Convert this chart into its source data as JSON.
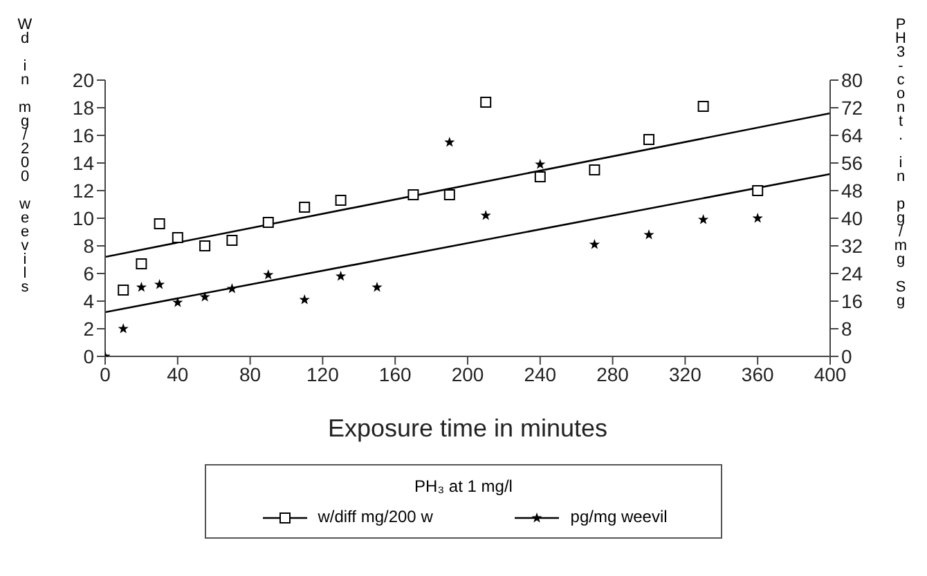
{
  "chart_data": {
    "type": "scatter",
    "xlabel": "Exposure time in minutes",
    "ylabel": "Wd in mg/200 weevils",
    "y2label": "PH3-cont. in pg/mg Sg",
    "legend_title": "PH₃ at 1 mg/l",
    "legend": "bottom",
    "xlim": [
      0,
      400
    ],
    "xticks": [
      0,
      40,
      80,
      120,
      160,
      200,
      240,
      280,
      320,
      360,
      400
    ],
    "ylim": [
      0,
      20
    ],
    "yticks": [
      0,
      2,
      4,
      6,
      8,
      10,
      12,
      14,
      16,
      18,
      20
    ],
    "y2lim": [
      0,
      80
    ],
    "y2ticks": [
      0,
      8,
      16,
      24,
      32,
      40,
      48,
      56,
      64,
      72,
      80
    ],
    "series": [
      {
        "name": "w/diff mg/200 w",
        "marker": "square",
        "color": "#000000",
        "x": [
          10,
          20,
          30,
          40,
          55,
          70,
          90,
          110,
          130,
          170,
          190,
          210,
          240,
          270,
          300,
          330,
          360
        ],
        "values": [
          4.8,
          6.7,
          9.6,
          8.6,
          8.0,
          8.4,
          9.7,
          10.8,
          11.3,
          11.7,
          11.7,
          18.4,
          13.0,
          13.5,
          15.7,
          18.1,
          12.0
        ]
      },
      {
        "name": "pg/mg weevil",
        "marker": "star",
        "axis": "y2",
        "color": "#000000",
        "x": [
          0,
          10,
          20,
          30,
          40,
          55,
          70,
          90,
          110,
          130,
          150,
          190,
          210,
          240,
          270,
          300,
          330,
          360
        ],
        "values": [
          0,
          8,
          20,
          20.8,
          15.6,
          17.2,
          19.6,
          23.6,
          16.4,
          23.2,
          20,
          62,
          40.8,
          55.6,
          32.4,
          35.2,
          39.6,
          40
        ]
      },
      {
        "type": "line",
        "color": "#000000",
        "x": [
          0,
          400
        ],
        "values": [
          7.2,
          17.6
        ]
      },
      {
        "type": "line",
        "axis": "y2",
        "color": "#000000",
        "x": [
          0,
          400
        ],
        "values": [
          12.8,
          52.8
        ]
      }
    ]
  }
}
